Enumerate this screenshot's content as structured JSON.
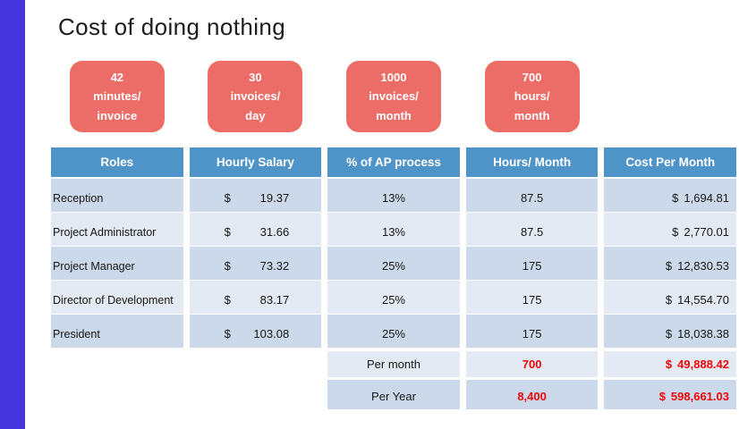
{
  "title": "Cost of doing nothing",
  "badges": [
    {
      "text": "42\nminutes/\ninvoice"
    },
    {
      "text": "30\ninvoices/\nday"
    },
    {
      "text": "1000\ninvoices/\nmonth"
    },
    {
      "text": "700\nhours/\nmonth"
    }
  ],
  "table": {
    "headers": [
      "Roles",
      "Hourly Salary",
      "% of AP process",
      "Hours/ Month",
      "Cost Per Month"
    ],
    "currency_symbol": "$",
    "rows": [
      {
        "role": "Reception",
        "salary": "19.37",
        "pct": "13%",
        "hours": "87.5",
        "cost": "1,694.81"
      },
      {
        "role": "Project Administrator",
        "salary": "31.66",
        "pct": "13%",
        "hours": "87.5",
        "cost": "2,770.01"
      },
      {
        "role": "Project Manager",
        "salary": "73.32",
        "pct": "25%",
        "hours": "175",
        "cost": "12,830.53"
      },
      {
        "role": "Director of Development",
        "salary": "83.17",
        "pct": "25%",
        "hours": "175",
        "cost": "14,554.70"
      },
      {
        "role": "President",
        "salary": "103.08",
        "pct": "25%",
        "hours": "175",
        "cost": "18,038.38"
      }
    ],
    "totals": [
      {
        "label": "Per month",
        "hours": "700",
        "cost": "49,888.42"
      },
      {
        "label": "Per Year",
        "hours": "8,400",
        "cost": "598,661.03"
      }
    ]
  },
  "colors": {
    "accent_bar": "#4736df",
    "header_blue": "#4f94c8",
    "row_dark": "#cbd9ea",
    "row_light": "#e3eaf4",
    "badge_red": "#ec6c68",
    "total_red": "#f10505"
  }
}
